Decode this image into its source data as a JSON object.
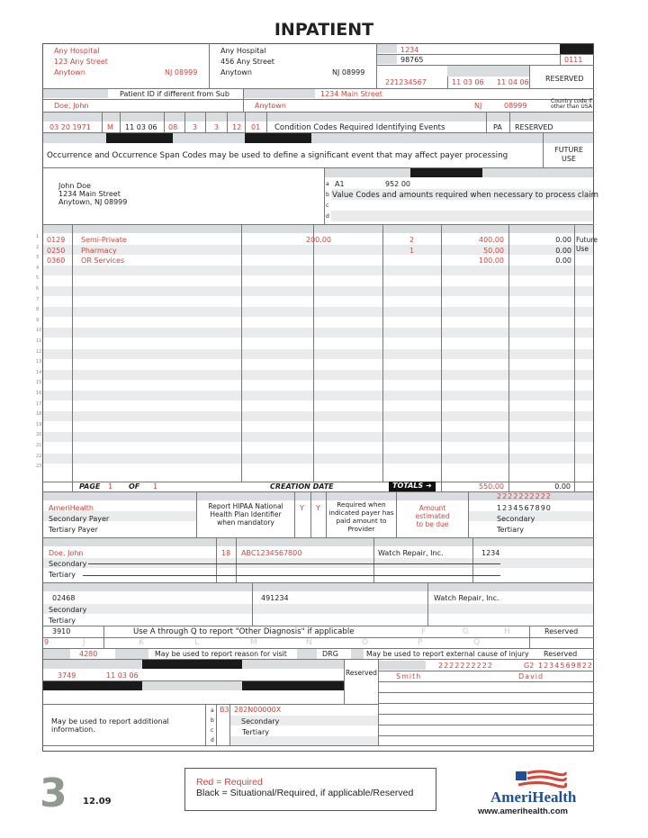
{
  "title": "INPATIENT",
  "provider": {
    "name": "Any Hospital",
    "street": "123 Any Street",
    "city": "Anytown",
    "state_zip": "NJ 08999"
  },
  "pay_to": {
    "name": "Any Hospital",
    "street": "456 Any Street",
    "city": "Anytown",
    "state_zip": "NJ 08999"
  },
  "patient_control_no": "1234",
  "med_rec_no": "98765",
  "type_of_bill": "0111",
  "fed_tax_no": "221234567",
  "statement_from": "11 03 06",
  "statement_through": "11 04 06",
  "box7": "RESERVED",
  "patient": {
    "id_note": "Patient ID if different from Sub",
    "name": "Doe, John",
    "street": "1234 Main Street",
    "city": "Anytown",
    "state": "NJ",
    "zip": "08999",
    "country_note_1": "Country code if",
    "country_note_2": "other than USA"
  },
  "admission": {
    "birthdate": "03 20 1971",
    "sex": "M",
    "date": "11 03 06",
    "hour": "08",
    "type": "3",
    "src": "3",
    "dhr": "12",
    "stat": "01",
    "condition_note": "Condition Codes Required Identifying Events",
    "acdt_state": "PA",
    "box30": "RESERVED"
  },
  "occurrence_note": "Occurrence and Occurrence Span Codes may be used to define a significant event that may affect payer processing",
  "future_use": {
    "line1": "FUTURE",
    "line2": "USE"
  },
  "responsible": {
    "line1": "John Doe",
    "line2": "1234 Main Street",
    "line3": "Anytown, NJ 08999"
  },
  "value_codes": {
    "code": "A1",
    "amount": "952 00",
    "note": "Value Codes and amounts required when necessary to process claim",
    "row_letters": [
      "a",
      "b",
      "c",
      "d"
    ]
  },
  "lines": [
    {
      "rev": "0129",
      "desc": "Semi-Private",
      "rate": "200.00",
      "units": "2",
      "total": "400.00",
      "noncov": "0.00"
    },
    {
      "rev": "0250",
      "desc": "Pharmacy",
      "rate": "",
      "units": "1",
      "total": "50.00",
      "noncov": "0.00"
    },
    {
      "rev": "0360",
      "desc": "OR Services",
      "rate": "",
      "units": "",
      "total": "100.00",
      "noncov": "0.00"
    }
  ],
  "future_use_49": {
    "line1": "Future",
    "line2": "Use"
  },
  "page": {
    "label": "PAGE",
    "num": "1",
    "of": "OF",
    "total": "1",
    "creation": "CREATION DATE",
    "totals": "TOTALS",
    "total_charges": "550.00",
    "total_noncov": "0.00"
  },
  "payer": {
    "rows": [
      "AmeriHealth",
      "Secondary Payer",
      "Tertiary Payer"
    ],
    "hp_note": [
      "Report HIPAA National",
      "Health Plan Identifier",
      "when mandatory"
    ],
    "rel_info": "Y",
    "asg": "Y",
    "prior_note": [
      "Required when",
      "indicated payer has",
      "paid amount to",
      "Provider"
    ],
    "est_note": [
      "Amount",
      "estimated",
      "to be due"
    ],
    "npi": "2222222222",
    "other_prv": [
      "1234567890",
      "Secondary",
      "Tertiary"
    ]
  },
  "insured": {
    "rows": [
      "Doe, John",
      "Secondary",
      "Tertiary"
    ],
    "prel": "18",
    "unique_id": "ABC1234567800",
    "group_name": "Watch Repair, Inc.",
    "group_no": "1234"
  },
  "treatment": {
    "rows": [
      "02468",
      "Secondary",
      "Tertiary"
    ],
    "doc_control": "491234",
    "employer": "Watch Repair, Inc."
  },
  "diagnosis": {
    "principal": "3910",
    "note": "Use A through Q to report \"Other Diagnosis\" if applicable",
    "row1_letters": [
      "F",
      "G",
      "H"
    ],
    "row2_letters": [
      "J",
      "K",
      "L",
      "M",
      "N",
      "O",
      "P",
      "Q"
    ],
    "poa": "9",
    "box68": "Reserved"
  },
  "admit": {
    "dx": "4280",
    "reason_note": "May be used to report reason for visit",
    "pps": "DRG",
    "eci_note": "May be used to report external cause of injury",
    "box73": "Reserved"
  },
  "procedure": {
    "code": "3749",
    "date": "11 03 06",
    "box77": "Reserved"
  },
  "attending": {
    "npi": "2222222222",
    "qual": "G2",
    "id": "1234569822",
    "last": "Smith",
    "first": "David"
  },
  "remarks": [
    "May be used to report additional",
    "information."
  ],
  "cc": {
    "qual": "B3",
    "code": "282N00000X",
    "rows": [
      "Secondary",
      "Tertiary"
    ],
    "letters": [
      "a",
      "b",
      "c",
      "d"
    ]
  },
  "footer": {
    "page_number": "3",
    "date": "12.09",
    "legend_red": "Red = Required",
    "legend_black": "Black = Situational/Required, if applicable/Reserved",
    "brand": "AmeriHealth",
    "url": "www.amerihealth.com"
  },
  "colors": {
    "required": "#d8433a",
    "label_bar": "#d9dde0",
    "stripe": "#e9ebed",
    "brand_blue": "#1f4f9a"
  }
}
